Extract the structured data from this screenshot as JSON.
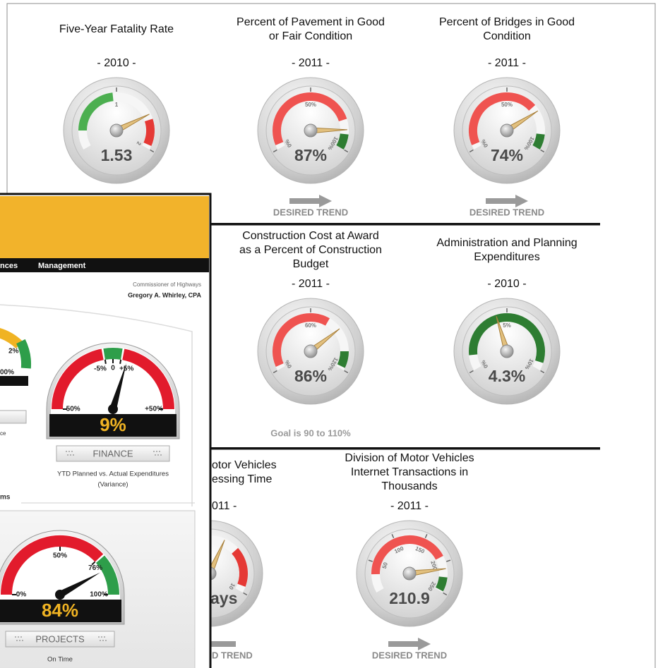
{
  "report": {
    "rows": [
      {
        "gauges": [
          {
            "title": [
              "Five-Year Fatality Rate"
            ],
            "year": "- 2010 -",
            "value": 1.53,
            "value_label": "1.53",
            "lim": [
              0,
              2
            ],
            "ticks": [
              1,
              2
            ],
            "zones": [
              {
                "from": 0.25,
                "to": 0.95,
                "color": "#4caf50"
              },
              {
                "from": 1.6,
                "to": 1.95,
                "color": "#e53935"
              }
            ]
          },
          {
            "title": [
              "Percent of Pavement in Good",
              "or Fair Condition"
            ],
            "year": "- 2011 -",
            "value": 87,
            "value_label": "87%",
            "lim": [
              0,
              100
            ],
            "ticks": [
              {
                "value": 0,
                "label": "0%"
              },
              {
                "value": 50,
                "label": "50%"
              },
              {
                "value": 100,
                "label": "100%"
              }
            ],
            "zones": [
              {
                "from": 3,
                "to": 80,
                "color": "#ef5350"
              },
              {
                "from": 90,
                "to": 100,
                "color": "#2e7d32"
              }
            ],
            "trend": "DESIRED TREND"
          },
          {
            "title": [
              "Percent of Bridges in Good",
              "Condition"
            ],
            "year": "- 2011 -",
            "value": 74,
            "value_label": "74%",
            "lim": [
              0,
              100
            ],
            "ticks": [
              {
                "value": 0,
                "label": "0%"
              },
              {
                "value": 50,
                "label": "50%"
              },
              {
                "value": 100,
                "label": "100%"
              }
            ],
            "zones": [
              {
                "from": 3,
                "to": 70,
                "color": "#ef5350"
              },
              {
                "from": 90,
                "to": 100,
                "color": "#2e7d32"
              }
            ],
            "trend": "DESIRED TREND"
          }
        ]
      },
      {
        "gauges": [
          {
            "title": [
              "Construction Cost at Award",
              "as a Percent of Construction",
              "Budget"
            ],
            "year": "- 2011 -",
            "value": 86,
            "value_label": "86%",
            "lim": [
              0,
              120
            ],
            "ticks": [
              {
                "value": 0,
                "label": "0%"
              },
              {
                "value": 60,
                "label": "60%"
              },
              {
                "value": 120,
                "label": "120%"
              }
            ],
            "zones": [
              {
                "from": 3,
                "to": 75,
                "color": "#ef5350"
              },
              {
                "from": 105,
                "to": 118,
                "color": "#2e7d32"
              }
            ],
            "note": "Goal is 90 to 110%"
          },
          {
            "title": [
              "Administration and Planning",
              "Expenditures"
            ],
            "year": "- 2010 -",
            "value": 4.3,
            "value_label": "4.3%",
            "lim": [
              0,
              10
            ],
            "ticks": [
              {
                "value": 0,
                "label": "0%"
              },
              {
                "value": 5,
                "label": "5%"
              },
              {
                "value": 10,
                "label": "10%"
              }
            ],
            "zones": [
              {
                "from": 1,
                "to": 9.5,
                "color": "#2e7d32"
              }
            ]
          }
        ]
      },
      {
        "partial_gauge": {
          "title_fragments": [
            "otor Vehicles",
            "essing Time"
          ],
          "year_fragment": "011 -",
          "value": 6,
          "value_fragment": "ays",
          "lim": [
            0,
            10
          ],
          "ticks": [
            10
          ],
          "zones": [
            {
              "from": 7,
              "to": 9.6,
              "color": "#e53935"
            }
          ],
          "trend_fragment": "D TREND"
        },
        "gauges": [
          {
            "title": [
              "Division of Motor Vehicles",
              "Internet Transactions in",
              "Thousands"
            ],
            "year": "- 2011 -",
            "value": 210.9,
            "value_label": "210.9",
            "lim": [
              0,
              250
            ],
            "ticks": [
              50,
              100,
              150,
              200,
              250
            ],
            "zones": [
              {
                "from": 30,
                "to": 190,
                "color": "#ef5350"
              },
              {
                "from": 225,
                "to": 248,
                "color": "#2e7d32"
              }
            ],
            "trend": "DESIRED TREND"
          }
        ]
      }
    ]
  },
  "overlay": {
    "nav": [
      "nces",
      "Management"
    ],
    "commissioner": {
      "role": "Commissioner of Highways",
      "name": "Gregory A. Whirley, CPA"
    },
    "cut_gauge": {
      "labels": [
        "2%",
        "00%"
      ],
      "caption": "ce"
    },
    "section": "ms",
    "gauges": [
      {
        "value": 9,
        "value_label": "9%",
        "lim": [
          -50,
          50
        ],
        "ticks": [
          {
            "value": -50,
            "label": "-50%"
          },
          {
            "value": -5,
            "label": "-5%"
          },
          0,
          {
            "value": 5,
            "label": "+5%"
          },
          {
            "value": 50,
            "label": "+50%"
          }
        ],
        "zones": [
          {
            "from": -50,
            "to": -6,
            "color": "#e21b2c"
          },
          {
            "from": -5,
            "to": 5,
            "color": "#2e9e4a"
          },
          {
            "from": 6,
            "to": 50,
            "color": "#e21b2c"
          }
        ],
        "plate": "FINANCE",
        "caption": [
          "YTD Planned vs. Actual Expenditures",
          "(Variance)"
        ]
      },
      {
        "value": 84,
        "value_label": "84%",
        "lim": [
          0,
          100
        ],
        "ticks": [
          {
            "value": 0,
            "label": "0%"
          },
          {
            "value": 50,
            "label": "50%"
          },
          {
            "value": 76,
            "label": "76%"
          },
          {
            "value": 100,
            "label": "100%"
          }
        ],
        "zones": [
          {
            "from": 0,
            "to": 76,
            "color": "#e21b2c"
          },
          {
            "from": 77,
            "to": 100,
            "color": "#2e9e4a"
          }
        ],
        "plate": "PROJECTS",
        "caption": [
          "On Time"
        ]
      }
    ]
  }
}
